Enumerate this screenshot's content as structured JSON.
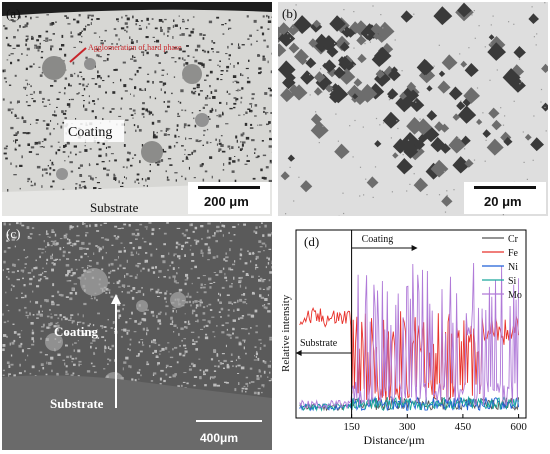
{
  "figure": {
    "panels": [
      {
        "id": "a",
        "label": "(a)",
        "annotation": "Agglomeration of hard phase",
        "region_coating": "Coating",
        "region_substrate": "Substrate",
        "scale_bar": "200 μm"
      },
      {
        "id": "b",
        "label": "(b)",
        "scale_bar": "20 μm"
      },
      {
        "id": "c",
        "label": "(c)",
        "region_coating": "Coating",
        "region_substrate": "Substrate",
        "scale_bar": "400μm"
      }
    ]
  },
  "chart_data": {
    "type": "line",
    "panel_label": "(d)",
    "xlabel": "Distance/μm",
    "ylabel": "Relative intensity",
    "xlim": [
      0,
      620
    ],
    "x_ticks": [
      150,
      300,
      450,
      600
    ],
    "annotations": [
      {
        "text": "Coating",
        "arrow": "right"
      },
      {
        "text": "Substrate",
        "arrow": "left"
      }
    ],
    "boundary_x": 150,
    "legend_position": "top-right",
    "series": [
      {
        "name": "Cr",
        "color": "#555555",
        "level": "low"
      },
      {
        "name": "Fe",
        "color": "#e8312a",
        "level": "high-then-mixed"
      },
      {
        "name": "Ni",
        "color": "#1f5fd6",
        "level": "low"
      },
      {
        "name": "Si",
        "color": "#1aa89c",
        "level": "low"
      },
      {
        "name": "Mo",
        "color": "#b07ad8",
        "level": "low-then-spiky"
      }
    ]
  }
}
